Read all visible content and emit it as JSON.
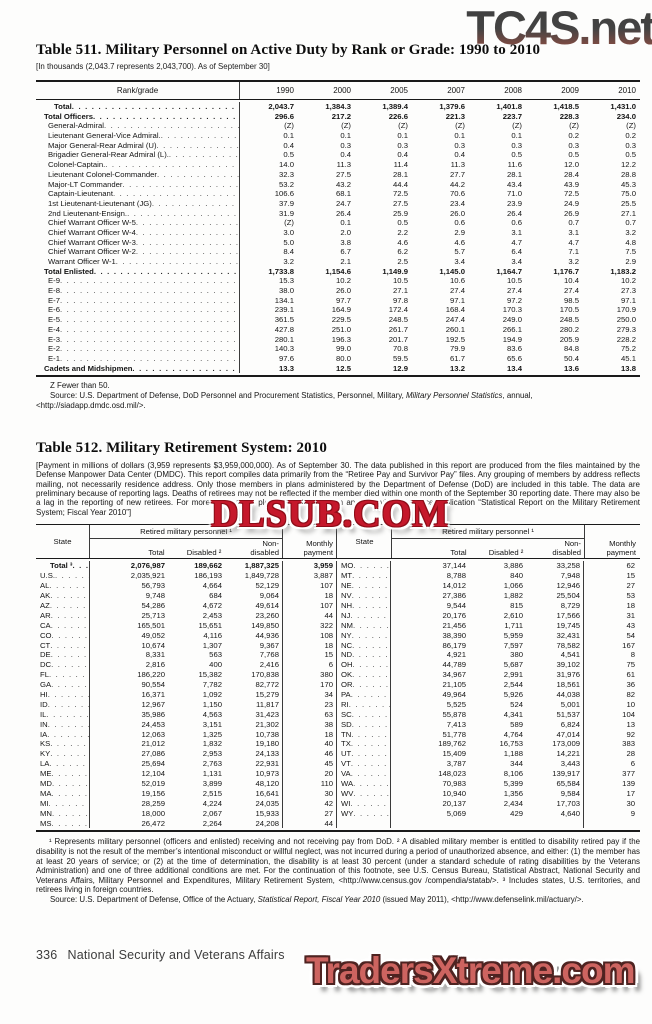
{
  "watermarks": {
    "top": "TC4S.net",
    "middle": "DLSUB.COM",
    "bottom": "TradersXtreme.com"
  },
  "colors": {
    "wm_top_dark": "#3a3a3a",
    "wm_top_red": "#8f4d40",
    "wm_mid_red": "#c5182b",
    "wm_bottom_red": "#cd6460",
    "ink": "#151515"
  },
  "footer": {
    "page_number": "336",
    "section": "National Security and Veterans Affairs",
    "edition": "U.S. Census Bureau, Statistical Abstract of the United States: 2012"
  },
  "table511": {
    "title": "Table 511. Military Personnel on Active Duty by Rank or Grade: 1990 to 2010",
    "subtitle": "[In thousands (2,043.7 represents 2,043,700). As of September 30]",
    "stub_header": "Rank/grade",
    "years": [
      "1990",
      "2000",
      "2005",
      "2007",
      "2008",
      "2009",
      "2010"
    ],
    "rows": [
      {
        "label": "Total",
        "b": 1,
        "ind": 18,
        "v": [
          "2,043.7",
          "1,384.3",
          "1,389.4",
          "1,379.6",
          "1,401.8",
          "1,418.5",
          "1,431.0"
        ]
      },
      {
        "label": "Total Officers",
        "b": 1,
        "ind": 8,
        "v": [
          "296.6",
          "217.2",
          "226.6",
          "221.3",
          "223.7",
          "228.3",
          "234.0"
        ]
      },
      {
        "label": "General-Admiral",
        "b": 0,
        "ind": 12,
        "v": [
          "(Z)",
          "(Z)",
          "(Z)",
          "(Z)",
          "(Z)",
          "(Z)",
          "(Z)"
        ]
      },
      {
        "label": "Lieutenant General-Vice Admiral.",
        "b": 0,
        "ind": 12,
        "v": [
          "0.1",
          "0.1",
          "0.1",
          "0.1",
          "0.1",
          "0.2",
          "0.2"
        ]
      },
      {
        "label": "Major General-Rear Admiral (U)",
        "b": 0,
        "ind": 12,
        "v": [
          "0.4",
          "0.3",
          "0.3",
          "0.3",
          "0.3",
          "0.3",
          "0.3"
        ]
      },
      {
        "label": "Brigadier General-Rear Admiral (L).",
        "b": 0,
        "ind": 12,
        "v": [
          "0.5",
          "0.4",
          "0.4",
          "0.4",
          "0.5",
          "0.5",
          "0.5"
        ]
      },
      {
        "label": "Colonel-Captain.",
        "b": 0,
        "ind": 12,
        "v": [
          "14.0",
          "11.3",
          "11.4",
          "11.3",
          "11.6",
          "12.0",
          "12.2"
        ]
      },
      {
        "label": "Lieutenant Colonel-Commander",
        "b": 0,
        "ind": 12,
        "v": [
          "32.3",
          "27.5",
          "28.1",
          "27.7",
          "28.1",
          "28.4",
          "28.8"
        ]
      },
      {
        "label": "Major-LT Commander",
        "b": 0,
        "ind": 12,
        "v": [
          "53.2",
          "43.2",
          "44.4",
          "44.2",
          "43.4",
          "43.9",
          "45.3"
        ]
      },
      {
        "label": "Captain-Lieutenant",
        "b": 0,
        "ind": 12,
        "v": [
          "106.6",
          "68.1",
          "72.5",
          "70.6",
          "71.0",
          "72.5",
          "75.0"
        ]
      },
      {
        "label": "1st Lieutenant-Lieutenant (JG)",
        "b": 0,
        "ind": 12,
        "v": [
          "37.9",
          "24.7",
          "27.5",
          "23.4",
          "23.9",
          "24.9",
          "25.5"
        ]
      },
      {
        "label": "2nd Lieutenant-Ensign.",
        "b": 0,
        "ind": 12,
        "v": [
          "31.9",
          "26.4",
          "25.9",
          "26.0",
          "26.4",
          "26.9",
          "27.1"
        ]
      },
      {
        "label": "Chief Warrant Officer W-5",
        "b": 0,
        "ind": 12,
        "v": [
          "(Z)",
          "0.1",
          "0.5",
          "0.6",
          "0.6",
          "0.7",
          "0.7"
        ]
      },
      {
        "label": "Chief Warrant Officer W-4",
        "b": 0,
        "ind": 12,
        "v": [
          "3.0",
          "2.0",
          "2.2",
          "2.9",
          "3.1",
          "3.1",
          "3.2"
        ]
      },
      {
        "label": "Chief Warrant Officer W-3",
        "b": 0,
        "ind": 12,
        "v": [
          "5.0",
          "3.8",
          "4.6",
          "4.6",
          "4.7",
          "4.7",
          "4.8"
        ]
      },
      {
        "label": "Chief Warrant Officer W-2",
        "b": 0,
        "ind": 12,
        "v": [
          "8.4",
          "6.7",
          "6.2",
          "5.7",
          "6.4",
          "7.1",
          "7.5"
        ]
      },
      {
        "label": "Warrant Officer W-1",
        "b": 0,
        "ind": 12,
        "v": [
          "3.2",
          "2.1",
          "2.5",
          "3.4",
          "3.4",
          "3.2",
          "2.9"
        ]
      },
      {
        "label": "Total Enlisted",
        "b": 1,
        "ind": 8,
        "v": [
          "1,733.8",
          "1,154.6",
          "1,149.9",
          "1,145.0",
          "1,164.7",
          "1,176.7",
          "1,183.2"
        ]
      },
      {
        "label": "E-9",
        "b": 0,
        "ind": 12,
        "v": [
          "15.3",
          "10.2",
          "10.5",
          "10.6",
          "10.5",
          "10.4",
          "10.2"
        ]
      },
      {
        "label": "E-8",
        "b": 0,
        "ind": 12,
        "v": [
          "38.0",
          "26.0",
          "27.1",
          "27.4",
          "27.4",
          "27.4",
          "27.3"
        ]
      },
      {
        "label": "E-7",
        "b": 0,
        "ind": 12,
        "v": [
          "134.1",
          "97.7",
          "97.8",
          "97.1",
          "97.2",
          "98.5",
          "97.1"
        ]
      },
      {
        "label": "E-6",
        "b": 0,
        "ind": 12,
        "v": [
          "239.1",
          "164.9",
          "172.4",
          "168.4",
          "170.3",
          "170.5",
          "170.9"
        ]
      },
      {
        "label": "E-5",
        "b": 0,
        "ind": 12,
        "v": [
          "361.5",
          "229.5",
          "248.5",
          "247.4",
          "249.0",
          "248.5",
          "250.0"
        ]
      },
      {
        "label": "E-4",
        "b": 0,
        "ind": 12,
        "v": [
          "427.8",
          "251.0",
          "261.7",
          "260.1",
          "266.1",
          "280.2",
          "279.3"
        ]
      },
      {
        "label": "E-3",
        "b": 0,
        "ind": 12,
        "v": [
          "280.1",
          "196.3",
          "201.7",
          "192.5",
          "194.9",
          "205.9",
          "228.2"
        ]
      },
      {
        "label": "E-2",
        "b": 0,
        "ind": 12,
        "v": [
          "140.3",
          "99.0",
          "70.8",
          "79.9",
          "83.6",
          "84.8",
          "75.2"
        ]
      },
      {
        "label": "E-1",
        "b": 0,
        "ind": 12,
        "v": [
          "97.6",
          "80.0",
          "59.5",
          "61.7",
          "65.6",
          "50.4",
          "45.1"
        ]
      },
      {
        "label": "Cadets and Midshipmen",
        "b": 1,
        "ind": 8,
        "v": [
          "13.3",
          "12.5",
          "12.9",
          "13.2",
          "13.4",
          "13.6",
          "13.8"
        ]
      }
    ],
    "footnote_z": "Z Fewer than 50.",
    "source_prefix": "Source: U.S. Department of Defense, DoD Personnel and Procurement Statistics, Personnel, Military, ",
    "source_italic": "Military Personnel Statistics",
    "source_suffix": ", annual, <http://siadapp.dmdc.osd.mil/>."
  },
  "table512": {
    "title": "Table 512. Military Retirement System: 2010",
    "intro": "[Payment in millions of dollars (3,959 represents $3,959,000,000). As of September 30. The data published in this report are produced from the files maintained by the Defense Manpower Data Center (DMDC). This report compiles data primarily from the “Retiree Pay and Survivor Pay” files. Any grouping of members by address reflects mailing, not necessarily residence address. Only those members in plans administered by the Department of Defense (DoD) are included in this table. The data are preliminary because of reporting lags. Deaths of retirees may not be reflected if the member died within one month of the September 30 reporting date. There may also be a lag in the reporting of new retirees. For more information, please see Introduction and Overview of source publication “Statistical Report on the Military Retirement System; Fiscal Year 2010”]",
    "col_state": "State",
    "spanner": "Retired military personnel ¹",
    "col_total": "Total",
    "col_disabled": "Disabled ²",
    "col_nondisabled": "Non-\ndisabled",
    "col_monthly": "Monthly\npayment",
    "left_rows": [
      {
        "label": "Total ³",
        "b": 1,
        "ind": 10,
        "v": [
          "2,076,987",
          "189,662",
          "1,887,325",
          "3,959"
        ]
      },
      {
        "label": "U.S.",
        "b": 0,
        "ind": 0,
        "v": [
          "2,035,921",
          "186,193",
          "1,849,728",
          "3,887"
        ]
      },
      {
        "label": "AL",
        "b": 0,
        "ind": 0,
        "v": [
          "56,793",
          "4,664",
          "52,129",
          "107"
        ]
      },
      {
        "label": "AK",
        "b": 0,
        "ind": 0,
        "v": [
          "9,748",
          "684",
          "9,064",
          "18"
        ]
      },
      {
        "label": "AZ",
        "b": 0,
        "ind": 0,
        "v": [
          "54,286",
          "4,672",
          "49,614",
          "107"
        ]
      },
      {
        "label": "AR",
        "b": 0,
        "ind": 0,
        "v": [
          "25,713",
          "2,453",
          "23,260",
          "44"
        ]
      },
      {
        "label": "CA",
        "b": 0,
        "ind": 0,
        "v": [
          "165,501",
          "15,651",
          "149,850",
          "322"
        ]
      },
      {
        "label": "CO",
        "b": 0,
        "ind": 0,
        "v": [
          "49,052",
          "4,116",
          "44,936",
          "108"
        ]
      },
      {
        "label": "CT",
        "b": 0,
        "ind": 0,
        "v": [
          "10,674",
          "1,307",
          "9,367",
          "18"
        ]
      },
      {
        "label": "DE",
        "b": 0,
        "ind": 0,
        "v": [
          "8,331",
          "563",
          "7,768",
          "15"
        ]
      },
      {
        "label": "DC",
        "b": 0,
        "ind": 0,
        "v": [
          "2,816",
          "400",
          "2,416",
          "6"
        ]
      },
      {
        "label": "FL",
        "b": 0,
        "ind": 0,
        "v": [
          "186,220",
          "15,382",
          "170,838",
          "380"
        ]
      },
      {
        "label": "GA",
        "b": 0,
        "ind": 0,
        "v": [
          "90,554",
          "7,782",
          "82,772",
          "170"
        ]
      },
      {
        "label": "HI",
        "b": 0,
        "ind": 0,
        "v": [
          "16,371",
          "1,092",
          "15,279",
          "34"
        ]
      },
      {
        "label": "ID",
        "b": 0,
        "ind": 0,
        "v": [
          "12,967",
          "1,150",
          "11,817",
          "23"
        ]
      },
      {
        "label": "IL",
        "b": 0,
        "ind": 0,
        "v": [
          "35,986",
          "4,563",
          "31,423",
          "63"
        ]
      },
      {
        "label": "IN",
        "b": 0,
        "ind": 0,
        "v": [
          "24,453",
          "3,151",
          "21,302",
          "38"
        ]
      },
      {
        "label": "IA",
        "b": 0,
        "ind": 0,
        "v": [
          "12,063",
          "1,325",
          "10,738",
          "18"
        ]
      },
      {
        "label": "KS",
        "b": 0,
        "ind": 0,
        "v": [
          "21,012",
          "1,832",
          "19,180",
          "40"
        ]
      },
      {
        "label": "KY",
        "b": 0,
        "ind": 0,
        "v": [
          "27,086",
          "2,953",
          "24,133",
          "46"
        ]
      },
      {
        "label": "LA",
        "b": 0,
        "ind": 0,
        "v": [
          "25,694",
          "2,763",
          "22,931",
          "45"
        ]
      },
      {
        "label": "ME",
        "b": 0,
        "ind": 0,
        "v": [
          "12,104",
          "1,131",
          "10,973",
          "20"
        ]
      },
      {
        "label": "MD",
        "b": 0,
        "ind": 0,
        "v": [
          "52,019",
          "3,899",
          "48,120",
          "110"
        ]
      },
      {
        "label": "MA",
        "b": 0,
        "ind": 0,
        "v": [
          "19,156",
          "2,515",
          "16,641",
          "30"
        ]
      },
      {
        "label": "MI",
        "b": 0,
        "ind": 0,
        "v": [
          "28,259",
          "4,224",
          "24,035",
          "42"
        ]
      },
      {
        "label": "MN",
        "b": 0,
        "ind": 0,
        "v": [
          "18,000",
          "2,067",
          "15,933",
          "27"
        ]
      },
      {
        "label": "MS",
        "b": 0,
        "ind": 0,
        "v": [
          "26,472",
          "2,264",
          "24,208",
          "44"
        ]
      }
    ],
    "right_rows": [
      {
        "label": "MO",
        "b": 0,
        "ind": 0,
        "v": [
          "37,144",
          "3,886",
          "33,258",
          "62"
        ]
      },
      {
        "label": "MT",
        "b": 0,
        "ind": 0,
        "v": [
          "8,788",
          "840",
          "7,948",
          "15"
        ]
      },
      {
        "label": "NE",
        "b": 0,
        "ind": 0,
        "v": [
          "14,012",
          "1,066",
          "12,946",
          "27"
        ]
      },
      {
        "label": "NV",
        "b": 0,
        "ind": 0,
        "v": [
          "27,386",
          "1,882",
          "25,504",
          "53"
        ]
      },
      {
        "label": "NH",
        "b": 0,
        "ind": 0,
        "v": [
          "9,544",
          "815",
          "8,729",
          "18"
        ]
      },
      {
        "label": "NJ",
        "b": 0,
        "ind": 0,
        "v": [
          "20,176",
          "2,610",
          "17,566",
          "31"
        ]
      },
      {
        "label": "NM",
        "b": 0,
        "ind": 0,
        "v": [
          "21,456",
          "1,711",
          "19,745",
          "43"
        ]
      },
      {
        "label": "NY",
        "b": 0,
        "ind": 0,
        "v": [
          "38,390",
          "5,959",
          "32,431",
          "54"
        ]
      },
      {
        "label": "NC",
        "b": 0,
        "ind": 0,
        "v": [
          "86,179",
          "7,597",
          "78,582",
          "167"
        ]
      },
      {
        "label": "ND",
        "b": 0,
        "ind": 0,
        "v": [
          "4,921",
          "380",
          "4,541",
          "8"
        ]
      },
      {
        "label": "OH",
        "b": 0,
        "ind": 0,
        "v": [
          "44,789",
          "5,687",
          "39,102",
          "75"
        ]
      },
      {
        "label": "OK",
        "b": 0,
        "ind": 0,
        "v": [
          "34,967",
          "2,991",
          "31,976",
          "61"
        ]
      },
      {
        "label": "OR",
        "b": 0,
        "ind": 0,
        "v": [
          "21,105",
          "2,544",
          "18,561",
          "36"
        ]
      },
      {
        "label": "PA",
        "b": 0,
        "ind": 0,
        "v": [
          "49,964",
          "5,926",
          "44,038",
          "82"
        ]
      },
      {
        "label": "RI",
        "b": 0,
        "ind": 0,
        "v": [
          "5,525",
          "524",
          "5,001",
          "10"
        ]
      },
      {
        "label": "SC",
        "b": 0,
        "ind": 0,
        "v": [
          "55,878",
          "4,341",
          "51,537",
          "104"
        ]
      },
      {
        "label": "SD",
        "b": 0,
        "ind": 0,
        "v": [
          "7,413",
          "589",
          "6,824",
          "13"
        ]
      },
      {
        "label": "TN",
        "b": 0,
        "ind": 0,
        "v": [
          "51,778",
          "4,764",
          "47,014",
          "92"
        ]
      },
      {
        "label": "TX",
        "b": 0,
        "ind": 0,
        "v": [
          "189,762",
          "16,753",
          "173,009",
          "383"
        ]
      },
      {
        "label": "UT",
        "b": 0,
        "ind": 0,
        "v": [
          "15,409",
          "1,188",
          "14,221",
          "28"
        ]
      },
      {
        "label": "VT",
        "b": 0,
        "ind": 0,
        "v": [
          "3,787",
          "344",
          "3,443",
          "6"
        ]
      },
      {
        "label": "VA",
        "b": 0,
        "ind": 0,
        "v": [
          "148,023",
          "8,106",
          "139,917",
          "377"
        ]
      },
      {
        "label": "WA",
        "b": 0,
        "ind": 0,
        "v": [
          "70,983",
          "5,399",
          "65,584",
          "139"
        ]
      },
      {
        "label": "WV",
        "b": 0,
        "ind": 0,
        "v": [
          "10,940",
          "1,356",
          "9,584",
          "17"
        ]
      },
      {
        "label": "WI",
        "b": 0,
        "ind": 0,
        "v": [
          "20,137",
          "2,434",
          "17,703",
          "30"
        ]
      },
      {
        "label": "WY",
        "b": 0,
        "ind": 0,
        "v": [
          "5,069",
          "429",
          "4,640",
          "9"
        ]
      },
      {
        "label": "",
        "b": 0,
        "ind": 0,
        "v": [
          "",
          "",
          "",
          ""
        ]
      }
    ],
    "footnotes": "¹ Represents military personnel (officers and enlisted) receiving and not receiving pay from DoD. ² A disabled military member is entitled to disability retired pay if the disability is not the result of the member’s intentional misconduct or willful neglect, was not incurred during a period of unauthorized absence, and either: (1) the member has at least 20 years of service; or (2) at the time of determination, the disability is at least 30 percent (under a standard schedule of rating disabilities by the Veterans Administration) and one of three additional conditions are met. For the continuation of this footnote, see U.S. Census Bureau, Statistical Abstract, National Security and Veterans Affairs, Military Personnel and Expenditures, Military Retirement System, <http://www.census.gov /compendia/statab/>. ³ Includes states, U.S. territories, and retirees living in foreign countries.",
    "source_prefix": "Source: U.S. Department of Defense, Office of the Actuary, ",
    "source_italic": "Statistical Report, Fiscal Year 2010",
    "source_suffix": " (issued May 2011), <http://www.defenselink.mil/actuary/>."
  }
}
